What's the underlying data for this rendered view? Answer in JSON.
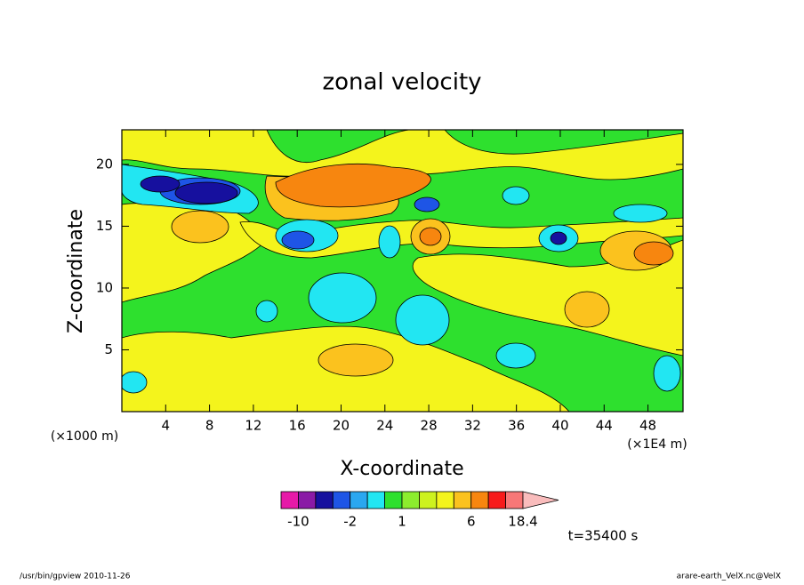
{
  "chart_data": {
    "type": "contour",
    "title": "zonal velocity",
    "xlabel": "X-coordinate",
    "ylabel": "Z-coordinate",
    "x_unit": "(×1E4 m)",
    "y_unit": "(×1000 m)",
    "xlim": [
      0,
      51.2
    ],
    "ylim": [
      0,
      22.8
    ],
    "xticks": [
      4,
      8,
      12,
      16,
      20,
      24,
      28,
      32,
      36,
      40,
      44,
      48
    ],
    "yticks": [
      5,
      10,
      15,
      20
    ],
    "colorbar": {
      "levels": [
        -10,
        -6,
        -3,
        -2,
        -1,
        0,
        1,
        2,
        3,
        4,
        6,
        10,
        14,
        18.4
      ],
      "colors": [
        "#e619a8",
        "#8a1aa6",
        "#16109e",
        "#1e55e6",
        "#2aa7f0",
        "#22e6f2",
        "#2ee02e",
        "#8ced2e",
        "#cdf21e",
        "#f4f41c",
        "#fbc21e",
        "#f7860f",
        "#f71a1a",
        "#f77777",
        "#f9bcbc"
      ],
      "ticks": [
        -10,
        -2,
        1,
        6,
        18.4
      ]
    },
    "time_label": "t=35400 s",
    "footer_left": "/usr/bin/gpview  2010-11-26",
    "footer_right": "arare-earth_VelX.nc@VelX"
  }
}
